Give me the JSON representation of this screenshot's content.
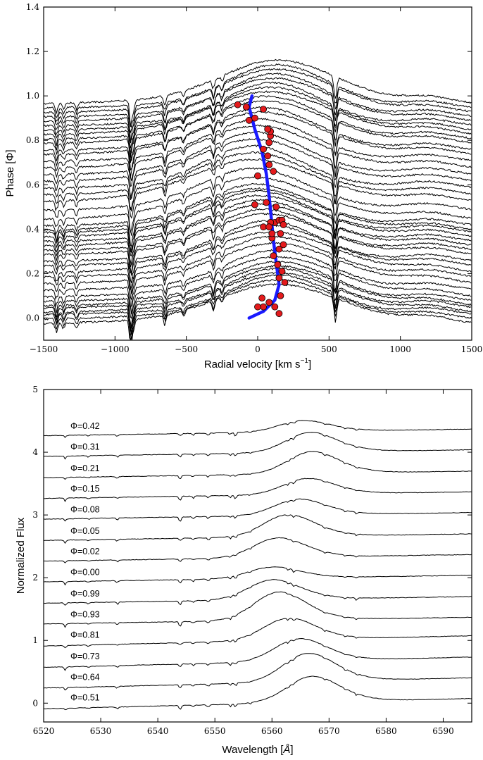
{
  "chart_data": [
    {
      "type": "line",
      "xlabel": "Radial velocity [km s",
      "xlabel_sup": "−1",
      "xlabel_close": "]",
      "ylabel": "Phase [Φ]",
      "xlim": [
        -1500,
        1500
      ],
      "ylim": [
        -0.1,
        1.4
      ],
      "xticks": [
        -1500,
        -1000,
        -500,
        0,
        500,
        1000,
        1500
      ],
      "xtick_labels": [
        "−1500",
        "−1000",
        "−500",
        "0",
        "500",
        "1000",
        "1500"
      ],
      "yticks": [
        0.0,
        0.2,
        0.4,
        0.6,
        0.8,
        1.0,
        1.2,
        1.4
      ],
      "ytick_labels": [
        "0.0",
        "0.2",
        "0.4",
        "0.6",
        "0.8",
        "1.0",
        "1.2",
        "1.4"
      ],
      "spectra_offsets": [
        0.0,
        0.02,
        0.04,
        0.05,
        0.07,
        0.08,
        0.1,
        0.12,
        0.15,
        0.18,
        0.21,
        0.23,
        0.26,
        0.28,
        0.31,
        0.33,
        0.35,
        0.37,
        0.39,
        0.41,
        0.42,
        0.44,
        0.47,
        0.51,
        0.55,
        0.58,
        0.61,
        0.64,
        0.67,
        0.7,
        0.73,
        0.76,
        0.78,
        0.81,
        0.83,
        0.85,
        0.87,
        0.89,
        0.91,
        0.93,
        0.95,
        0.97,
        0.99
      ],
      "spectra_color": "#000000",
      "rv_curve": {
        "color": "#1a1aff",
        "x": [
          -60,
          40,
          120,
          150,
          130,
          110,
          95,
          80,
          60,
          30,
          -20,
          -60,
          -40
        ],
        "y": [
          0.0,
          0.03,
          0.08,
          0.15,
          0.25,
          0.35,
          0.45,
          0.55,
          0.65,
          0.75,
          0.85,
          0.95,
          1.0
        ]
      },
      "rv_points": {
        "color": "#e31a1c",
        "edge": "#000000",
        "x": [
          150,
          120,
          80,
          30,
          40,
          0,
          160,
          150,
          190,
          170,
          140,
          110,
          150,
          180,
          100,
          160,
          40,
          120,
          90,
          150,
          170,
          180,
          80,
          100,
          -20,
          130,
          60,
          0,
          80,
          110,
          70,
          40,
          80,
          90,
          90,
          70,
          -20,
          40,
          -140,
          -80,
          -60
        ],
        "y": [
          0.02,
          0.05,
          0.07,
          0.09,
          0.05,
          0.05,
          0.1,
          0.18,
          0.16,
          0.21,
          0.24,
          0.28,
          0.31,
          0.33,
          0.36,
          0.38,
          0.41,
          0.43,
          0.43,
          0.44,
          0.44,
          0.42,
          0.41,
          0.38,
          0.51,
          0.5,
          0.52,
          0.64,
          0.69,
          0.66,
          0.73,
          0.76,
          0.79,
          0.82,
          0.84,
          0.85,
          0.9,
          0.94,
          0.96,
          0.95,
          0.89
        ]
      }
    },
    {
      "type": "line",
      "xlabel": "Wavelength [",
      "xlabel_unit": "Å",
      "xlabel_close": "]",
      "ylabel": "Normalized Flux",
      "xlim": [
        6520,
        6595
      ],
      "ylim": [
        -0.3,
        5
      ],
      "xticks": [
        6520,
        6530,
        6540,
        6550,
        6560,
        6570,
        6580,
        6590
      ],
      "xtick_labels": [
        "6520",
        "6530",
        "6540",
        "6550",
        "6560",
        "6570",
        "6580",
        "6590"
      ],
      "yticks": [
        0,
        1,
        2,
        3,
        4,
        5
      ],
      "ytick_labels": [
        "0",
        "1",
        "2",
        "3",
        "4",
        "5"
      ],
      "series": [
        {
          "name": "Φ=0.42",
          "offset": 4.3
        },
        {
          "name": "Φ=0.31",
          "offset": 3.97
        },
        {
          "name": "Φ=0.21",
          "offset": 3.63
        },
        {
          "name": "Φ=0.15",
          "offset": 3.3
        },
        {
          "name": "Φ=0.08",
          "offset": 2.97
        },
        {
          "name": "Φ=0.05",
          "offset": 2.63
        },
        {
          "name": "Φ=0.02",
          "offset": 2.3
        },
        {
          "name": "Φ=0.00",
          "offset": 1.97
        },
        {
          "name": "Φ=0.99",
          "offset": 1.63
        },
        {
          "name": "Φ=0.93",
          "offset": 1.3
        },
        {
          "name": "Φ=0.81",
          "offset": 0.97
        },
        {
          "name": "Φ=0.73",
          "offset": 0.63
        },
        {
          "name": "Φ=0.64",
          "offset": 0.3
        },
        {
          "name": "Φ=0.51",
          "offset": -0.03
        }
      ]
    }
  ]
}
